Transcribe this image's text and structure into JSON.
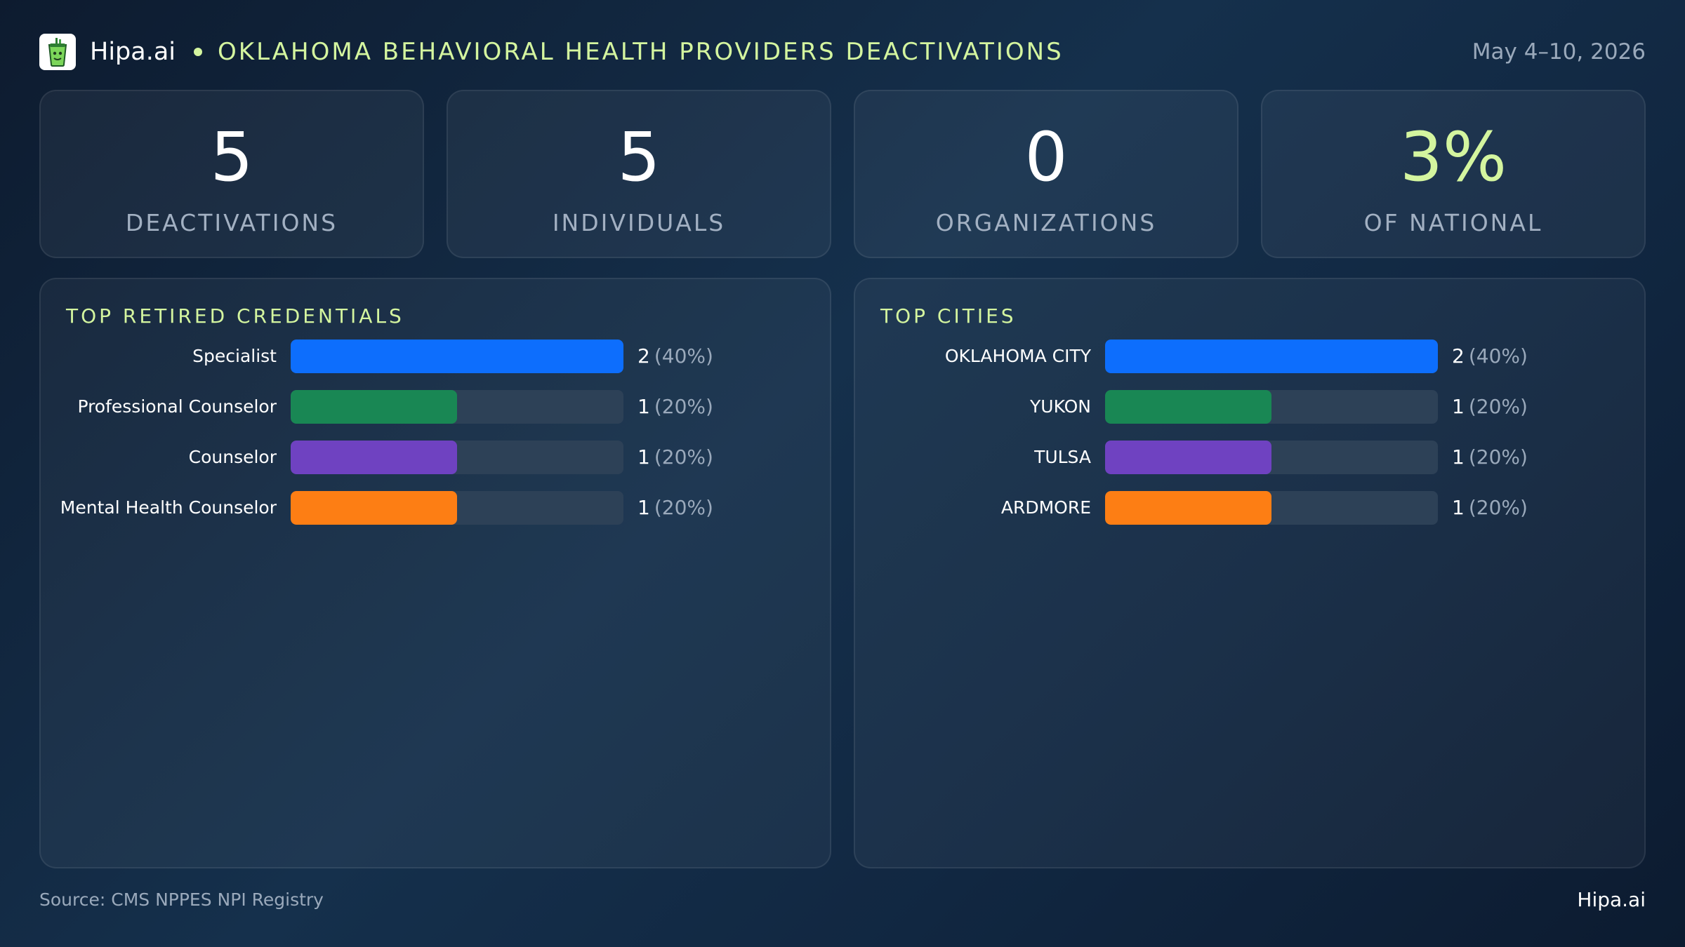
{
  "header": {
    "brand": "Hipa.ai",
    "logo_icon": "cup-icon",
    "title": "OKLAHOMA BEHAVIORAL HEALTH PROVIDERS DEACTIVATIONS",
    "date_range": "May 4–10, 2026"
  },
  "stats": [
    {
      "value": "5",
      "label": "DEACTIVATIONS"
    },
    {
      "value": "5",
      "label": "INDIVIDUALS"
    },
    {
      "value": "0",
      "label": "ORGANIZATIONS"
    },
    {
      "value": "3%",
      "label": "OF NATIONAL"
    }
  ],
  "colors": {
    "accent": "#d4f59f",
    "series": [
      "#0d6efd",
      "#198754",
      "#6f42c1",
      "#fd7e14"
    ]
  },
  "chart_data": [
    {
      "type": "bar",
      "orientation": "horizontal",
      "title": "TOP RETIRED CREDENTIALS",
      "categories": [
        "Specialist",
        "Professional Counselor",
        "Counselor",
        "Mental Health Counselor"
      ],
      "values": [
        2,
        1,
        1,
        1
      ],
      "percents": [
        "(40%)",
        "(20%)",
        "(20%)",
        "(20%)"
      ],
      "xlim": [
        0,
        2
      ]
    },
    {
      "type": "bar",
      "orientation": "horizontal",
      "title": "TOP CITIES",
      "categories": [
        "OKLAHOMA CITY",
        "YUKON",
        "TULSA",
        "ARDMORE"
      ],
      "values": [
        2,
        1,
        1,
        1
      ],
      "percents": [
        "(40%)",
        "(20%)",
        "(20%)",
        "(20%)"
      ],
      "xlim": [
        0,
        2
      ]
    }
  ],
  "footer": {
    "source": "Source: CMS NPPES NPI Registry",
    "brand": "Hipa.ai"
  }
}
